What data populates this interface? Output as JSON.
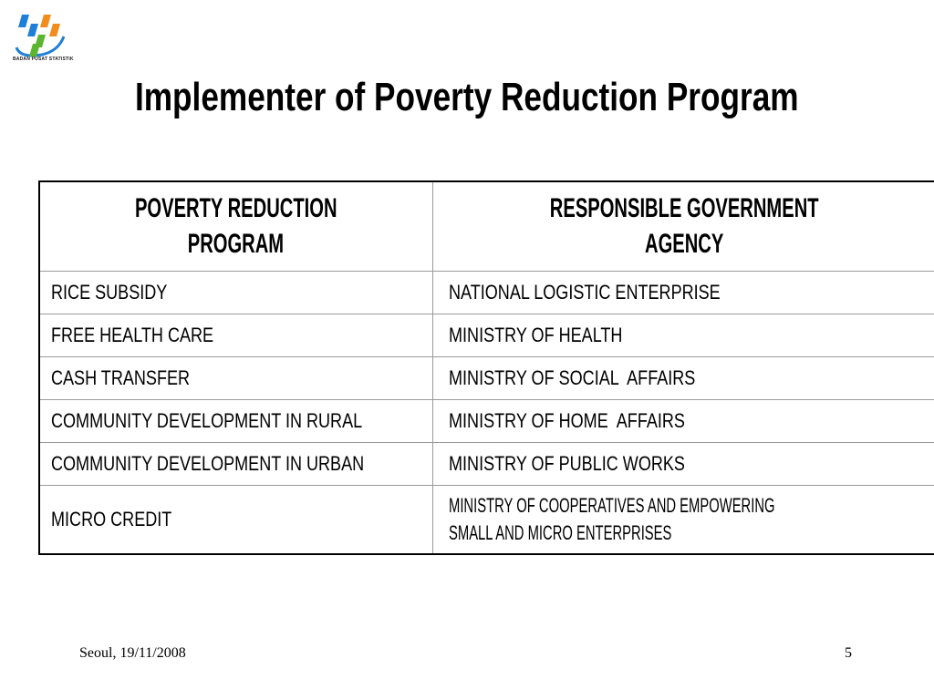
{
  "logo": {
    "text": "BADAN PUSAT STATISTIK",
    "colors": [
      "#1e7fd8",
      "#f28c1c",
      "#5bb531"
    ]
  },
  "title": "Implementer of Poverty Reduction Program",
  "table": {
    "headers": [
      "POVERTY REDUCTION PROGRAM",
      "RESPONSIBLE GOVERNMENT AGENCY"
    ],
    "header_lines": [
      [
        "POVERTY REDUCTION",
        "PROGRAM"
      ],
      [
        "RESPONSIBLE GOVERNMENT",
        "AGENCY"
      ]
    ],
    "rows": [
      [
        "RICE SUBSIDY",
        "NATIONAL LOGISTIC ENTERPRISE"
      ],
      [
        "FREE HEALTH CARE",
        "MINISTRY OF HEALTH"
      ],
      [
        "CASH TRANSFER",
        "MINISTRY OF SOCIAL  AFFAIRS"
      ],
      [
        "COMMUNITY DEVELOPMENT IN RURAL",
        "MINISTRY OF HOME  AFFAIRS"
      ],
      [
        "COMMUNITY DEVELOPMENT IN URBAN",
        "MINISTRY OF PUBLIC WORKS"
      ],
      [
        "MICRO CREDIT",
        "MINISTRY OF COOPERATIVES AND EMPOWERING SMALL AND MICRO ENTERPRISES"
      ]
    ],
    "last_row_lines": [
      "MINISTRY OF COOPERATIVES AND EMPOWERING",
      "SMALL AND MICRO ENTERPRISES"
    ]
  },
  "footer": {
    "location_date": "Seoul, 19/11/2008",
    "page_number": "5"
  }
}
